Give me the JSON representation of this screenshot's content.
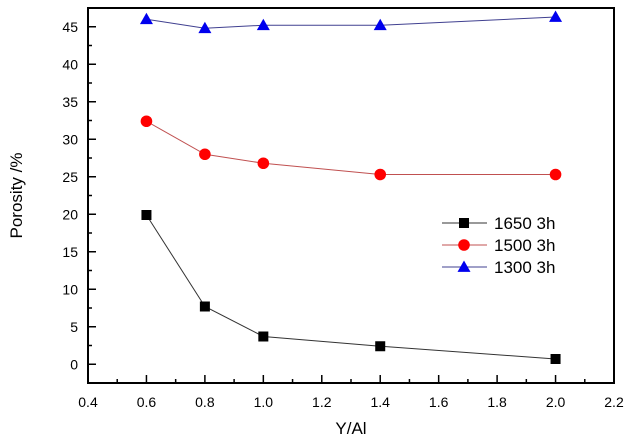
{
  "chart_data": {
    "type": "line",
    "title": "",
    "xlabel": "Y/Al",
    "ylabel": "Porosity /%",
    "xlim": [
      0.4,
      2.2
    ],
    "ylim": [
      -2.5,
      47.5
    ],
    "xticks": [
      0.4,
      0.6,
      0.8,
      1.0,
      1.2,
      1.4,
      1.6,
      1.8,
      2.0,
      2.2
    ],
    "xtick_labels": [
      "0.4",
      "0.6",
      "0.8",
      "1.0",
      "1.2",
      "1.4",
      "1.6",
      "1.8",
      "2.0",
      "2.2"
    ],
    "yticks": [
      0,
      5,
      10,
      15,
      20,
      25,
      30,
      35,
      40,
      45
    ],
    "ytick_labels": [
      "0",
      "5",
      "10",
      "15",
      "20",
      "25",
      "30",
      "35",
      "40",
      "45"
    ],
    "grid": false,
    "legend_position": "center-right",
    "x": [
      0.6,
      0.8,
      1.0,
      1.4,
      2.0
    ],
    "series": [
      {
        "name": "1650 3h",
        "marker": "square",
        "color": "#000000",
        "line_color": "#333333",
        "values": [
          19.9,
          7.7,
          3.7,
          2.4,
          0.7
        ]
      },
      {
        "name": "1500 3h",
        "marker": "circle",
        "color": "#ff0000",
        "line_color": "#c05050",
        "values": [
          32.4,
          28.0,
          26.8,
          25.3,
          25.3
        ]
      },
      {
        "name": "1300 3h",
        "marker": "triangle",
        "color": "#0000ee",
        "line_color": "#404090",
        "values": [
          46.0,
          44.8,
          45.2,
          45.2,
          46.3
        ]
      }
    ]
  }
}
